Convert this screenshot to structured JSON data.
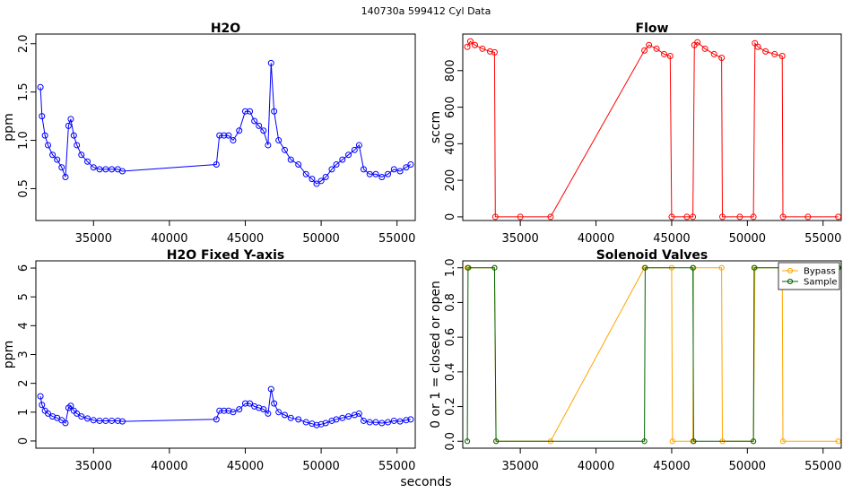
{
  "figure": {
    "suptitle": "140730a    599412   Cyl Data",
    "xlabel": "seconds"
  },
  "colors": {
    "h2o": "#0000ff",
    "flow": "#ff0000",
    "bypass": "#ffa500",
    "sample": "#006400"
  },
  "chart_data": [
    {
      "type": "scatter",
      "title": "H2O",
      "xlabel": "",
      "ylabel": "ppm",
      "xlim": [
        31200,
        56200
      ],
      "ylim": [
        0.17,
        2.1
      ],
      "xticks": [
        35000,
        40000,
        45000,
        50000,
        55000
      ],
      "yticks": [
        0.5,
        1.0,
        1.5,
        2.0
      ],
      "ytick_labels": [
        "0.5",
        "1.0",
        "1.5",
        "2.0"
      ],
      "grid": false,
      "series": [
        {
          "marker": "open-circle",
          "line": true,
          "x": [
            31500,
            31600,
            31800,
            32000,
            32300,
            32600,
            32900,
            33150,
            33350,
            33500,
            33700,
            33900,
            34200,
            34600,
            35000,
            35400,
            35800,
            36200,
            36600,
            36900,
            43100,
            43300,
            43600,
            43900,
            44200,
            44600,
            45000,
            45300,
            45600,
            45900,
            46200,
            46500,
            46700,
            46900,
            47200,
            47600,
            48000,
            48500,
            49000,
            49400,
            49700,
            50000,
            50300,
            50700,
            51000,
            51400,
            51800,
            52200,
            52500,
            52800,
            53200,
            53600,
            54000,
            54400,
            54800,
            55200,
            55600,
            55900
          ],
          "y": [
            1.55,
            1.25,
            1.05,
            0.95,
            0.85,
            0.8,
            0.72,
            0.62,
            1.15,
            1.22,
            1.05,
            0.95,
            0.85,
            0.78,
            0.72,
            0.7,
            0.7,
            0.7,
            0.7,
            0.68,
            0.75,
            1.05,
            1.05,
            1.05,
            1.0,
            1.1,
            1.3,
            1.3,
            1.2,
            1.15,
            1.1,
            0.95,
            1.8,
            1.3,
            1.0,
            0.9,
            0.8,
            0.75,
            0.65,
            0.6,
            0.55,
            0.58,
            0.62,
            0.7,
            0.75,
            0.8,
            0.85,
            0.9,
            0.95,
            0.7,
            0.65,
            0.65,
            0.62,
            0.65,
            0.7,
            0.68,
            0.72,
            0.75
          ]
        }
      ]
    },
    {
      "type": "line",
      "title": "Flow",
      "xlabel": "",
      "ylabel": "sccm",
      "xlim": [
        31200,
        56200
      ],
      "ylim": [
        -20,
        1000
      ],
      "xticks": [
        35000,
        40000,
        45000,
        50000,
        55000
      ],
      "yticks": [
        0,
        200,
        400,
        600,
        800
      ],
      "grid": false,
      "series": [
        {
          "marker": "open-circle",
          "x": [
            31500,
            31700,
            32000,
            32500,
            33000,
            33300,
            33350,
            35000,
            37000,
            43200,
            43500,
            44000,
            44500,
            44900,
            45000,
            46000,
            46400,
            46500,
            46700,
            47200,
            47800,
            48300,
            48350,
            49500,
            50400,
            50500,
            50700,
            51200,
            51800,
            52300,
            52350,
            54000,
            56000
          ],
          "y": [
            930,
            960,
            940,
            920,
            905,
            900,
            0,
            0,
            0,
            910,
            940,
            920,
            890,
            880,
            0,
            0,
            0,
            940,
            955,
            920,
            890,
            870,
            0,
            0,
            0,
            950,
            930,
            905,
            890,
            880,
            0,
            0,
            0
          ]
        }
      ]
    },
    {
      "type": "scatter",
      "title": "H2O Fixed Y-axis",
      "xlabel": "",
      "ylabel": "ppm",
      "xlim": [
        31200,
        56200
      ],
      "ylim": [
        -0.25,
        6.25
      ],
      "xticks": [
        35000,
        40000,
        45000,
        50000,
        55000
      ],
      "yticks": [
        0,
        1,
        2,
        3,
        4,
        5,
        6
      ],
      "grid": false,
      "series": [
        {
          "marker": "open-circle",
          "line": true,
          "x": [
            31500,
            31600,
            31800,
            32000,
            32300,
            32600,
            32900,
            33150,
            33350,
            33500,
            33700,
            33900,
            34200,
            34600,
            35000,
            35400,
            35800,
            36200,
            36600,
            36900,
            43100,
            43300,
            43600,
            43900,
            44200,
            44600,
            45000,
            45300,
            45600,
            45900,
            46200,
            46500,
            46700,
            46900,
            47200,
            47600,
            48000,
            48500,
            49000,
            49400,
            49700,
            50000,
            50300,
            50700,
            51000,
            51400,
            51800,
            52200,
            52500,
            52800,
            53200,
            53600,
            54000,
            54400,
            54800,
            55200,
            55600,
            55900
          ],
          "y": [
            1.55,
            1.25,
            1.05,
            0.95,
            0.85,
            0.8,
            0.72,
            0.62,
            1.15,
            1.22,
            1.05,
            0.95,
            0.85,
            0.78,
            0.72,
            0.7,
            0.7,
            0.7,
            0.7,
            0.68,
            0.75,
            1.05,
            1.05,
            1.05,
            1.0,
            1.1,
            1.3,
            1.3,
            1.2,
            1.15,
            1.1,
            0.95,
            1.8,
            1.3,
            1.0,
            0.9,
            0.8,
            0.75,
            0.65,
            0.6,
            0.55,
            0.58,
            0.62,
            0.7,
            0.75,
            0.8,
            0.85,
            0.9,
            0.95,
            0.7,
            0.65,
            0.65,
            0.62,
            0.65,
            0.7,
            0.68,
            0.72,
            0.75
          ]
        }
      ]
    },
    {
      "type": "line",
      "title": "Solenoid Valves",
      "xlabel": "",
      "ylabel": "0 or 1 = closed or open",
      "xlim": [
        31200,
        56200
      ],
      "ylim": [
        -0.04,
        1.04
      ],
      "xticks": [
        35000,
        40000,
        45000,
        50000,
        55000
      ],
      "yticks": [
        0.0,
        0.2,
        0.4,
        0.6,
        0.8,
        1.0
      ],
      "ytick_labels": [
        "0.0",
        "0.2",
        "0.4",
        "0.6",
        "0.8",
        "1.0"
      ],
      "grid": false,
      "legend": {
        "position": "top-right",
        "entries": [
          "Bypass",
          "Sample"
        ]
      },
      "series": [
        {
          "name": "Bypass",
          "marker": "open-circle",
          "x": [
            31500,
            31600,
            33300,
            33400,
            37000,
            43200,
            45000,
            45050,
            46400,
            46450,
            48300,
            48350,
            50400,
            50500,
            52300,
            52350,
            56000
          ],
          "y": [
            1,
            1,
            1,
            0,
            0,
            1,
            1,
            0,
            0,
            1,
            1,
            0,
            0,
            1,
            1,
            0,
            0
          ]
        },
        {
          "name": "Sample",
          "marker": "open-circle",
          "x": [
            31500,
            31550,
            33300,
            33400,
            43200,
            43250,
            46400,
            46450,
            50400,
            50450,
            56000
          ],
          "y": [
            0,
            1,
            1,
            0,
            0,
            1,
            1,
            0,
            0,
            1,
            1
          ]
        }
      ]
    }
  ]
}
